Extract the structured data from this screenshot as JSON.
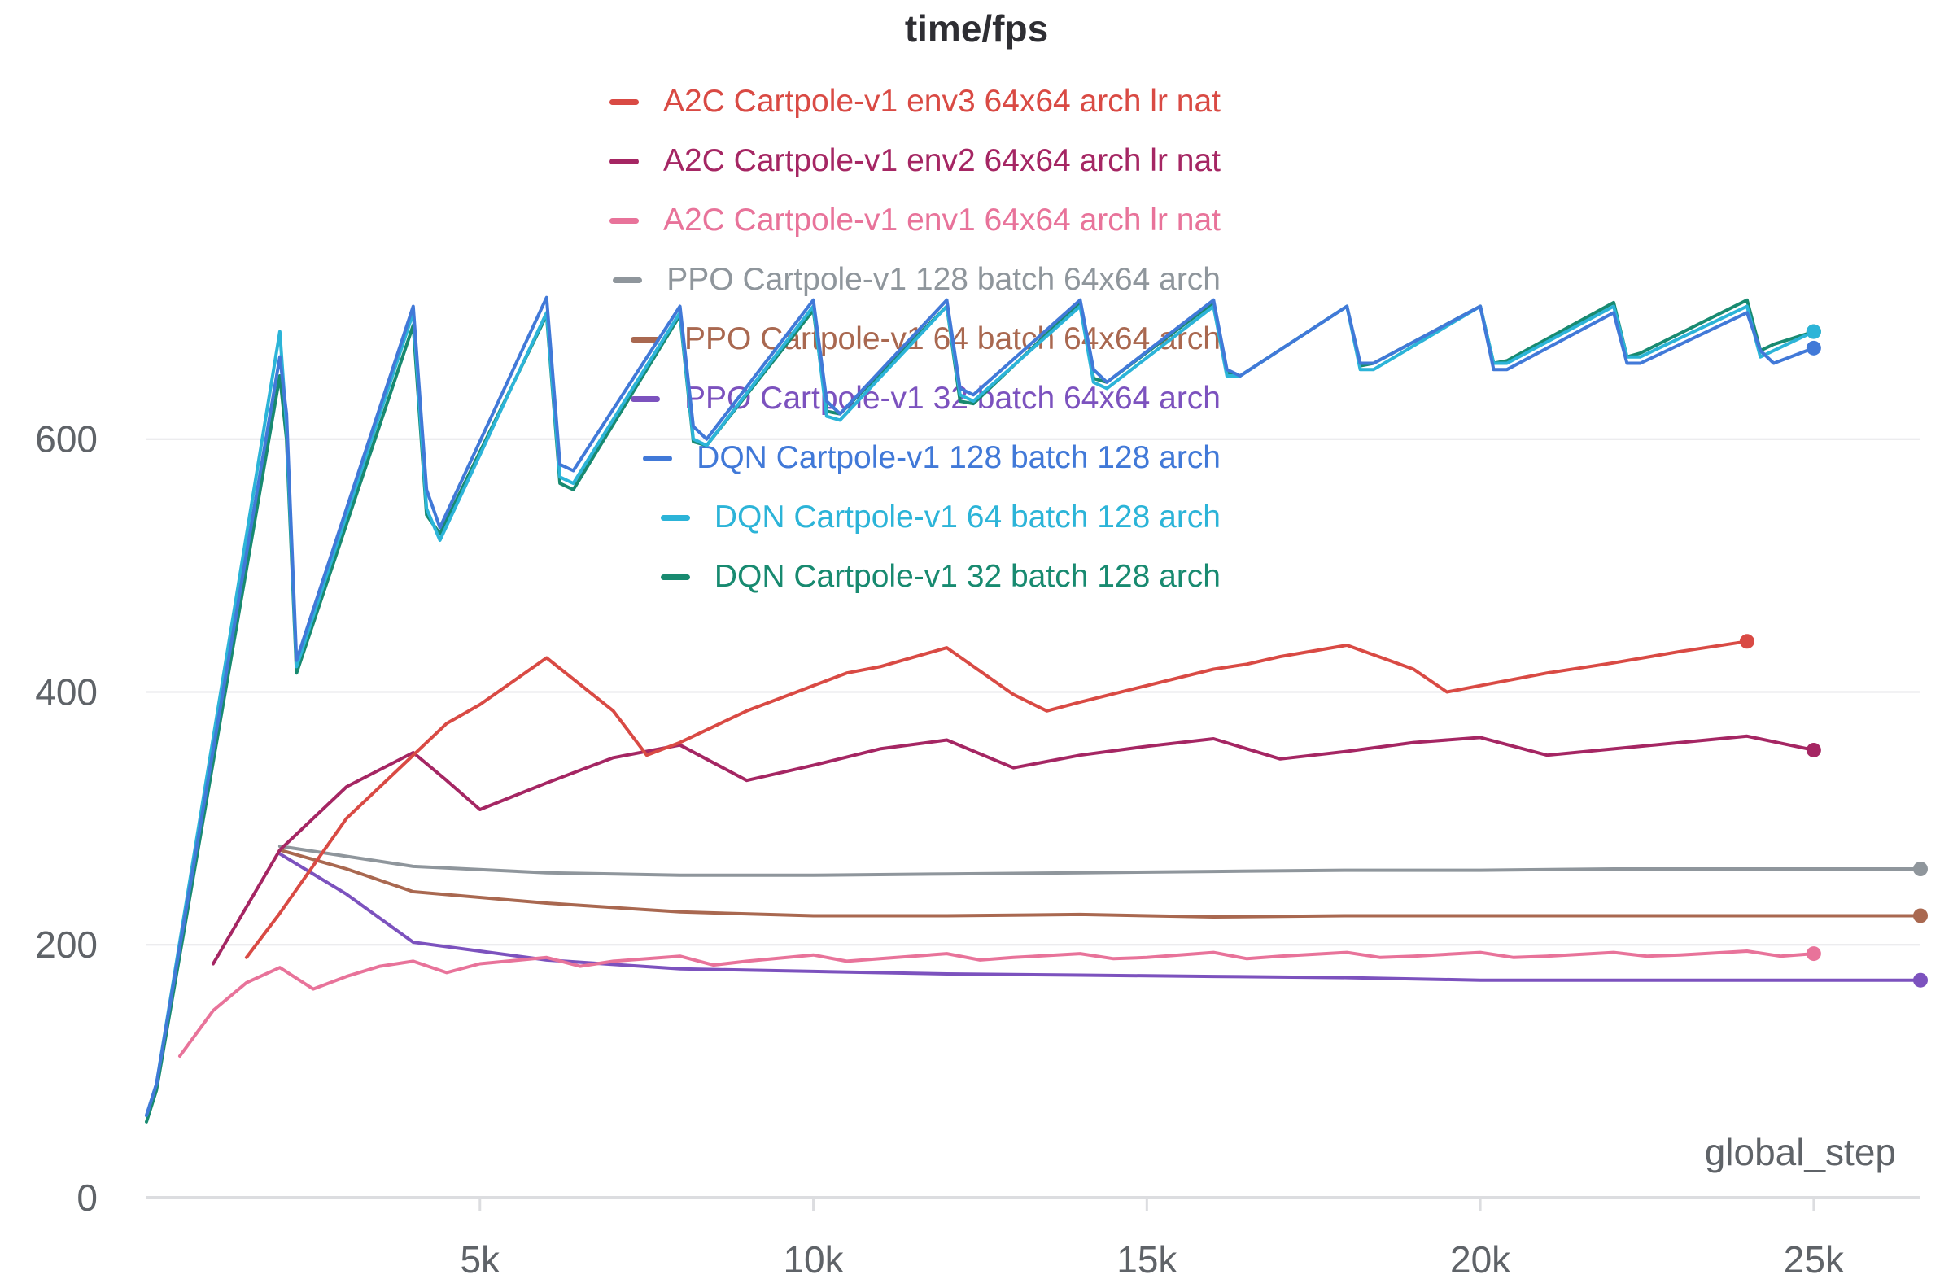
{
  "chart_data": {
    "type": "line",
    "title": "time/fps",
    "xlabel": "global_step",
    "ylabel": "",
    "xlim": [
      0,
      26600
    ],
    "ylim": [
      0,
      780
    ],
    "x_ticks": [
      5000,
      10000,
      15000,
      20000,
      25000
    ],
    "x_tick_labels": [
      "5k",
      "10k",
      "15k",
      "20k",
      "25k"
    ],
    "y_ticks": [
      0,
      200,
      400,
      600
    ],
    "y_tick_labels": [
      "0",
      "200",
      "400",
      "600"
    ],
    "grid": "horizontal",
    "legend_position": "top",
    "series": [
      {
        "name": "A2C Cartpole-v1 env3 64x64 arch lr nat",
        "color": "#d94a44",
        "x": [
          1500,
          2000,
          3000,
          4000,
          4500,
          5000,
          6000,
          7000,
          7500,
          8000,
          9000,
          10000,
          10500,
          11000,
          12000,
          13000,
          13500,
          14000,
          15000,
          16000,
          16500,
          17000,
          18000,
          19000,
          19500,
          20000,
          21000,
          22000,
          23000,
          24000
        ],
        "y": [
          190,
          225,
          300,
          350,
          375,
          390,
          427,
          385,
          350,
          360,
          385,
          405,
          415,
          420,
          435,
          398,
          385,
          392,
          405,
          418,
          422,
          428,
          437,
          418,
          400,
          405,
          415,
          423,
          432,
          440
        ]
      },
      {
        "name": "A2C Cartpole-v1 env2 64x64 arch lr nat",
        "color": "#a52663",
        "x": [
          1000,
          2000,
          3000,
          4000,
          4500,
          5000,
          6000,
          7000,
          8000,
          9000,
          10000,
          11000,
          12000,
          13000,
          14000,
          15000,
          16000,
          17000,
          18000,
          19000,
          20000,
          21000,
          22000,
          23000,
          24000,
          25000
        ],
        "y": [
          185,
          275,
          325,
          352,
          330,
          307,
          328,
          348,
          358,
          330,
          342,
          355,
          362,
          340,
          350,
          357,
          363,
          347,
          353,
          360,
          364,
          350,
          355,
          360,
          365,
          354
        ]
      },
      {
        "name": "A2C Cartpole-v1 env1 64x64 arch lr nat",
        "color": "#e8739a",
        "x": [
          500,
          1000,
          1500,
          2000,
          2500,
          3000,
          3500,
          4000,
          4500,
          5000,
          6000,
          6500,
          7000,
          8000,
          8500,
          9000,
          10000,
          10500,
          11000,
          12000,
          12500,
          13000,
          14000,
          14500,
          15000,
          16000,
          16500,
          17000,
          18000,
          18500,
          19000,
          20000,
          20500,
          21000,
          22000,
          22500,
          23000,
          24000,
          24500,
          25000
        ],
        "y": [
          112,
          148,
          170,
          182,
          165,
          175,
          183,
          187,
          178,
          185,
          190,
          183,
          187,
          191,
          184,
          187,
          192,
          187,
          189,
          193,
          188,
          190,
          193,
          189,
          190,
          194,
          189,
          191,
          194,
          190,
          191,
          194,
          190,
          191,
          194,
          191,
          192,
          195,
          191,
          193
        ]
      },
      {
        "name": "PPO Cartpole-v1 128 batch 64x64 arch",
        "color": "#8f969c",
        "x": [
          2000,
          3000,
          4000,
          6000,
          8000,
          10000,
          12000,
          14000,
          16000,
          18000,
          20000,
          22000,
          24000,
          26600
        ],
        "y": [
          278,
          270,
          262,
          257,
          255,
          255,
          256,
          257,
          258,
          259,
          259,
          260,
          260,
          260
        ]
      },
      {
        "name": "PPO Cartpole-v1 64 batch 64x64 arch",
        "color": "#a96850",
        "x": [
          2000,
          3000,
          4000,
          6000,
          8000,
          10000,
          12000,
          14000,
          16000,
          18000,
          20000,
          22000,
          24000,
          26600
        ],
        "y": [
          275,
          260,
          242,
          233,
          226,
          223,
          223,
          224,
          222,
          223,
          223,
          223,
          223,
          223
        ]
      },
      {
        "name": "PPO Cartpole-v1 32 batch 64x64 arch",
        "color": "#7c52be",
        "x": [
          2000,
          3000,
          4000,
          5000,
          6000,
          8000,
          10000,
          12000,
          14000,
          16000,
          18000,
          20000,
          22000,
          24000,
          26600
        ],
        "y": [
          272,
          240,
          202,
          195,
          188,
          181,
          179,
          177,
          176,
          175,
          174,
          172,
          172,
          172,
          172
        ]
      },
      {
        "name": "DQN Cartpole-v1 128 batch 128 arch",
        "color": "#4179d8",
        "x": [
          0,
          150,
          2000,
          2100,
          2250,
          4000,
          4200,
          4400,
          6000,
          6200,
          6400,
          8000,
          8200,
          8400,
          10000,
          10200,
          10400,
          12000,
          12200,
          12400,
          14000,
          14200,
          14400,
          16000,
          16200,
          16400,
          18000,
          18200,
          18400,
          20000,
          20200,
          20400,
          22000,
          22200,
          22400,
          24000,
          24200,
          24400,
          25000
        ],
        "y": [
          65,
          90,
          665,
          620,
          425,
          705,
          560,
          530,
          712,
          580,
          575,
          705,
          610,
          600,
          710,
          630,
          620,
          710,
          640,
          635,
          710,
          655,
          645,
          710,
          655,
          650,
          705,
          660,
          660,
          705,
          655,
          655,
          700,
          660,
          660,
          700,
          670,
          660,
          672
        ]
      },
      {
        "name": "DQN Cartpole-v1 64 batch 128 arch",
        "color": "#2cb4d8",
        "x": [
          0,
          150,
          2000,
          2100,
          2250,
          4000,
          4200,
          4400,
          6000,
          6200,
          6400,
          8000,
          8200,
          8400,
          10000,
          10200,
          10400,
          12000,
          12200,
          12400,
          14000,
          14200,
          14400,
          16000,
          16200,
          16400,
          18000,
          18200,
          18400,
          20000,
          20200,
          20400,
          22000,
          22200,
          22400,
          24000,
          24200,
          24400,
          25000
        ],
        "y": [
          65,
          90,
          685,
          610,
          420,
          700,
          545,
          520,
          700,
          570,
          565,
          700,
          600,
          595,
          705,
          618,
          615,
          705,
          635,
          630,
          705,
          645,
          640,
          705,
          650,
          650,
          705,
          655,
          655,
          705,
          660,
          660,
          705,
          665,
          665,
          705,
          665,
          670,
          685
        ]
      },
      {
        "name": "DQN Cartpole-v1 32 batch 128 arch",
        "color": "#188a70",
        "x": [
          0,
          150,
          2000,
          2100,
          2250,
          4000,
          4200,
          4400,
          6000,
          6200,
          6400,
          8000,
          8200,
          8400,
          10000,
          10200,
          10400,
          12000,
          12200,
          12400,
          14000,
          14200,
          14400,
          16000,
          16200,
          16400,
          18000,
          18200,
          18400,
          20000,
          20200,
          20400,
          22000,
          22200,
          22400,
          24000,
          24200,
          24400,
          25000
        ],
        "y": [
          60,
          85,
          650,
          600,
          415,
          690,
          540,
          525,
          698,
          565,
          560,
          698,
          598,
          595,
          702,
          622,
          620,
          705,
          630,
          628,
          708,
          648,
          645,
          708,
          652,
          650,
          705,
          658,
          660,
          705,
          660,
          662,
          708,
          665,
          668,
          710,
          670,
          675,
          685
        ]
      }
    ]
  }
}
